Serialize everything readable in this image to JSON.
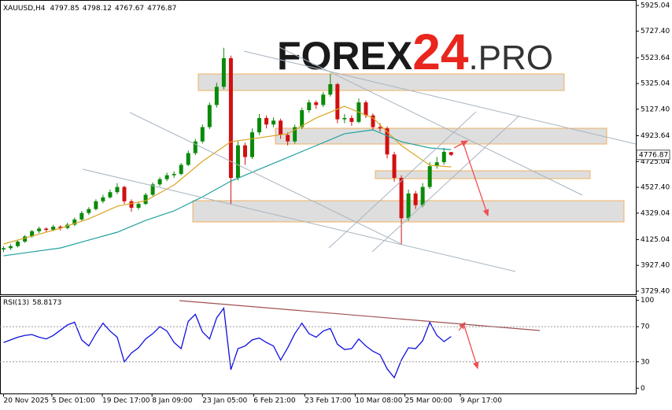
{
  "chart_data": [
    {
      "type": "candlestick",
      "title": "XAUUSD,H4",
      "watermark": [
        "FOREX",
        "24",
        ".PRO"
      ],
      "up_color": "#0a8a0a",
      "down_color": "#d01010",
      "xlim": [
        -0.5,
        89
      ],
      "ylim": [
        3717,
        5967
      ],
      "yticks": [
        {
          "value": 5925.04,
          "label": "5925.04"
        },
        {
          "value": 5727.4,
          "label": "5727.40"
        },
        {
          "value": 5523.64,
          "label": "5523.64"
        },
        {
          "value": 5325.04,
          "label": "5325.04"
        },
        {
          "value": 5127.4,
          "label": "5127.40"
        },
        {
          "value": 4923.64,
          "label": "4923.64"
        },
        {
          "value": 4725.04,
          "label": "4725.04"
        },
        {
          "value": 4527.4,
          "label": "4527.40"
        },
        {
          "value": 4329.04,
          "label": "4329.04"
        },
        {
          "value": 4125.04,
          "label": "4125.04"
        },
        {
          "value": 3927.4,
          "label": "3927.40"
        },
        {
          "value": 3729.4,
          "label": "3729.40"
        }
      ],
      "ohlc": [
        [
          4050,
          4075,
          4030,
          4060
        ],
        [
          4060,
          4090,
          4045,
          4075
        ],
        [
          4075,
          4120,
          4065,
          4110
        ],
        [
          4110,
          4160,
          4100,
          4150
        ],
        [
          4150,
          4200,
          4140,
          4190
        ],
        [
          4190,
          4225,
          4175,
          4210
        ],
        [
          4210,
          4220,
          4180,
          4200
        ],
        [
          4200,
          4240,
          4190,
          4225
        ],
        [
          4225,
          4235,
          4195,
          4215
        ],
        [
          4215,
          4255,
          4205,
          4240
        ],
        [
          4240,
          4295,
          4230,
          4280
        ],
        [
          4280,
          4345,
          4270,
          4330
        ],
        [
          4330,
          4375,
          4315,
          4360
        ],
        [
          4360,
          4435,
          4350,
          4420
        ],
        [
          4420,
          4470,
          4405,
          4450
        ],
        [
          4450,
          4510,
          4440,
          4490
        ],
        [
          4490,
          4560,
          4475,
          4530
        ],
        [
          4530,
          4540,
          4400,
          4420
        ],
        [
          4420,
          4435,
          4340,
          4370
        ],
        [
          4370,
          4415,
          4355,
          4400
        ],
        [
          4400,
          4485,
          4390,
          4470
        ],
        [
          4470,
          4565,
          4460,
          4550
        ],
        [
          4550,
          4605,
          4535,
          4590
        ],
        [
          4590,
          4640,
          4575,
          4620
        ],
        [
          4620,
          4650,
          4600,
          4630
        ],
        [
          4630,
          4715,
          4620,
          4700
        ],
        [
          4700,
          4810,
          4690,
          4790
        ],
        [
          4790,
          4900,
          4775,
          4880
        ],
        [
          4880,
          5010,
          4865,
          4990
        ],
        [
          4990,
          5180,
          4975,
          5160
        ],
        [
          5160,
          5330,
          5140,
          5300
        ],
        [
          5300,
          5600,
          5280,
          5520
        ],
        [
          5520,
          5540,
          4400,
          4600
        ],
        [
          4600,
          4880,
          4580,
          4850
        ],
        [
          4850,
          4870,
          4700,
          4760
        ],
        [
          4760,
          4980,
          4745,
          4950
        ],
        [
          4950,
          5090,
          4930,
          5060
        ],
        [
          5060,
          5080,
          4980,
          5010
        ],
        [
          5010,
          5065,
          4990,
          5040
        ],
        [
          5040,
          5055,
          4900,
          4930
        ],
        [
          4930,
          4950,
          4850,
          4880
        ],
        [
          4880,
          5010,
          4865,
          4990
        ],
        [
          4990,
          5140,
          4975,
          5120
        ],
        [
          5120,
          5200,
          5100,
          5180
        ],
        [
          5180,
          5195,
          5130,
          5160
        ],
        [
          5160,
          5260,
          5145,
          5240
        ],
        [
          5240,
          5400,
          5225,
          5320
        ],
        [
          5320,
          5330,
          5020,
          5050
        ],
        [
          5050,
          5090,
          5020,
          5060
        ],
        [
          5060,
          5080,
          5000,
          5030
        ],
        [
          5030,
          5210,
          5020,
          5180
        ],
        [
          5180,
          5195,
          5060,
          5080
        ],
        [
          5080,
          5095,
          4970,
          4990
        ],
        [
          4990,
          5020,
          4955,
          4980
        ],
        [
          4980,
          4995,
          4750,
          4780
        ],
        [
          4780,
          4800,
          4570,
          4600
        ],
        [
          4600,
          4620,
          4090,
          4290
        ],
        [
          4290,
          4510,
          4270,
          4480
        ],
        [
          4480,
          4500,
          4360,
          4390
        ],
        [
          4390,
          4560,
          4375,
          4530
        ],
        [
          4530,
          4720,
          4515,
          4690
        ],
        [
          4690,
          4760,
          4670,
          4720
        ],
        [
          4720,
          4830,
          4700,
          4800
        ],
        [
          4797.85,
          4798.12,
          4767.67,
          4776.87
        ]
      ],
      "overlays": [
        {
          "color": "#d9a520",
          "x": [
            0,
            4,
            8,
            12,
            16,
            20,
            24,
            28,
            32,
            36,
            40,
            44,
            48,
            52,
            56,
            60,
            63
          ],
          "values": [
            4092,
            4152,
            4213,
            4285,
            4382,
            4424,
            4545,
            4727,
            4878,
            4908,
            4939,
            5060,
            5150,
            5060,
            4848,
            4697,
            4684
          ]
        },
        {
          "color": "#20a0a0",
          "x": [
            0,
            4,
            8,
            12,
            16,
            20,
            24,
            28,
            32,
            36,
            40,
            44,
            48,
            52,
            56,
            60,
            63
          ],
          "values": [
            4001,
            4031,
            4061,
            4122,
            4182,
            4273,
            4346,
            4454,
            4575,
            4666,
            4757,
            4848,
            4939,
            4969,
            4878,
            4830,
            4817
          ]
        }
      ]
    },
    {
      "type": "line",
      "title": "RSI(13)",
      "color": "#1010e0",
      "xlim": [
        -0.5,
        89
      ],
      "ylim": [
        -6,
        105
      ],
      "yticks": [
        100,
        70,
        30,
        0
      ],
      "xticks": [
        {
          "value": 0,
          "label": "20 Nov 2025"
        },
        {
          "value": 6.8,
          "label": "5 Dec 01:00"
        },
        {
          "value": 13.9,
          "label": "19 Dec 17:00"
        },
        {
          "value": 20.9,
          "label": "8 Jan 09:00"
        },
        {
          "value": 28,
          "label": "23 Jan 05:00"
        },
        {
          "value": 35.2,
          "label": "6 Feb 21:00"
        },
        {
          "value": 42.4,
          "label": "23 Feb 17:00"
        },
        {
          "value": 49.5,
          "label": "10 Mar 08:00"
        },
        {
          "value": 56.5,
          "label": "25 Mar 00:00"
        },
        {
          "value": 64.3,
          "label": "9 Apr 17:00"
        }
      ],
      "values": [
        52,
        55,
        58,
        60,
        61,
        58,
        56,
        60,
        66,
        72,
        75,
        55,
        48,
        62,
        74,
        65,
        58,
        30,
        40,
        46,
        56,
        62,
        70,
        65,
        52,
        45,
        76,
        84,
        64,
        56,
        80,
        91,
        21,
        45,
        48,
        55,
        57,
        52,
        48,
        32,
        46,
        62,
        74,
        62,
        58,
        65,
        68,
        50,
        44,
        45,
        56,
        48,
        42,
        38,
        22,
        12,
        32,
        46,
        45,
        54,
        75,
        60,
        53,
        58.8173
      ]
    }
  ]
}
